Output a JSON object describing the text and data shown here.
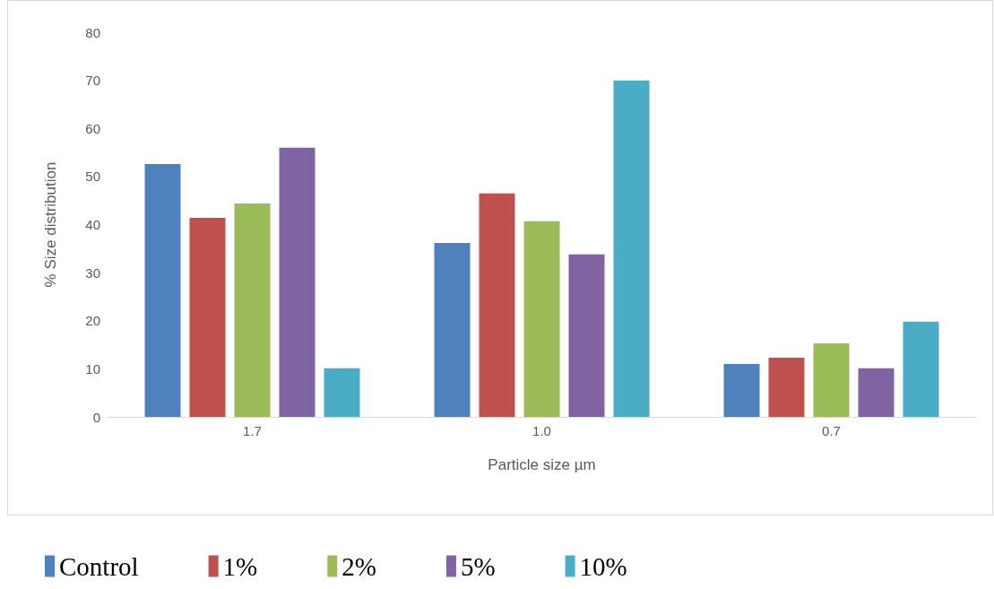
{
  "chart_data": {
    "type": "bar",
    "xlabel": "Particle size µm",
    "ylabel": "% Size distribution",
    "categories": [
      "1.7",
      "1.0",
      "0.7"
    ],
    "series": [
      {
        "name": "Control",
        "color": "#4f81bd",
        "values": [
          52.6,
          36.2,
          11.0
        ]
      },
      {
        "name": "1%",
        "color": "#c0504d",
        "values": [
          41.4,
          46.5,
          12.3
        ]
      },
      {
        "name": "2%",
        "color": "#9bbb59",
        "values": [
          44.4,
          40.7,
          15.3
        ]
      },
      {
        "name": "5%",
        "color": "#8064a2",
        "values": [
          56.0,
          33.8,
          10.1
        ]
      },
      {
        "name": "10%",
        "color": "#4bacc6",
        "values": [
          10.1,
          70.0,
          19.8
        ]
      }
    ],
    "ylim": [
      0,
      80
    ],
    "yticks": [
      0,
      10,
      20,
      30,
      40,
      50,
      60,
      70,
      80
    ],
    "grid": false,
    "legend": "bottom"
  }
}
